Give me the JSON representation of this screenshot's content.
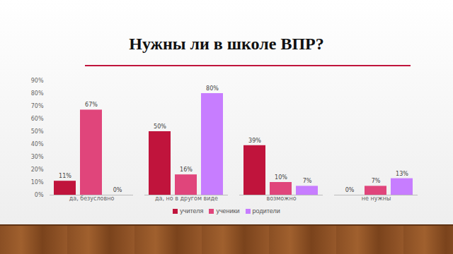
{
  "chart_data": {
    "type": "bar",
    "title": "Нужны ли в школе ВПР?",
    "categories": [
      "да, безусловно",
      "да, но в другом виде",
      "возможно",
      "не нужны"
    ],
    "series": [
      {
        "name": "учителя",
        "color": "#c0143c",
        "values": [
          11,
          50,
          39,
          0
        ],
        "value_labels": [
          "11%",
          "50%",
          "39%",
          "0%"
        ]
      },
      {
        "name": "ученики",
        "color": "#e0457b",
        "values": [
          67,
          16,
          10,
          7
        ],
        "value_labels": [
          "67%",
          "16%",
          "10%",
          "7%"
        ]
      },
      {
        "name": "родители",
        "color": "#c77dff",
        "values": [
          0,
          80,
          7,
          13
        ],
        "value_labels": [
          "0%",
          "80%",
          "7%",
          "13%"
        ]
      }
    ],
    "ylim": [
      0,
      90
    ],
    "yticks": [
      {
        "value": 0,
        "label": "0%"
      },
      {
        "value": 10,
        "label": "10%"
      },
      {
        "value": 20,
        "label": "20%"
      },
      {
        "value": 30,
        "label": "30%"
      },
      {
        "value": 40,
        "label": "40%"
      },
      {
        "value": 50,
        "label": "50%"
      },
      {
        "value": 60,
        "label": "60%"
      },
      {
        "value": 70,
        "label": "70%"
      },
      {
        "value": 80,
        "label": "80%"
      },
      {
        "value": 90,
        "label": "90%"
      }
    ],
    "grid": false,
    "legend": "bottom",
    "data_labels": true
  }
}
